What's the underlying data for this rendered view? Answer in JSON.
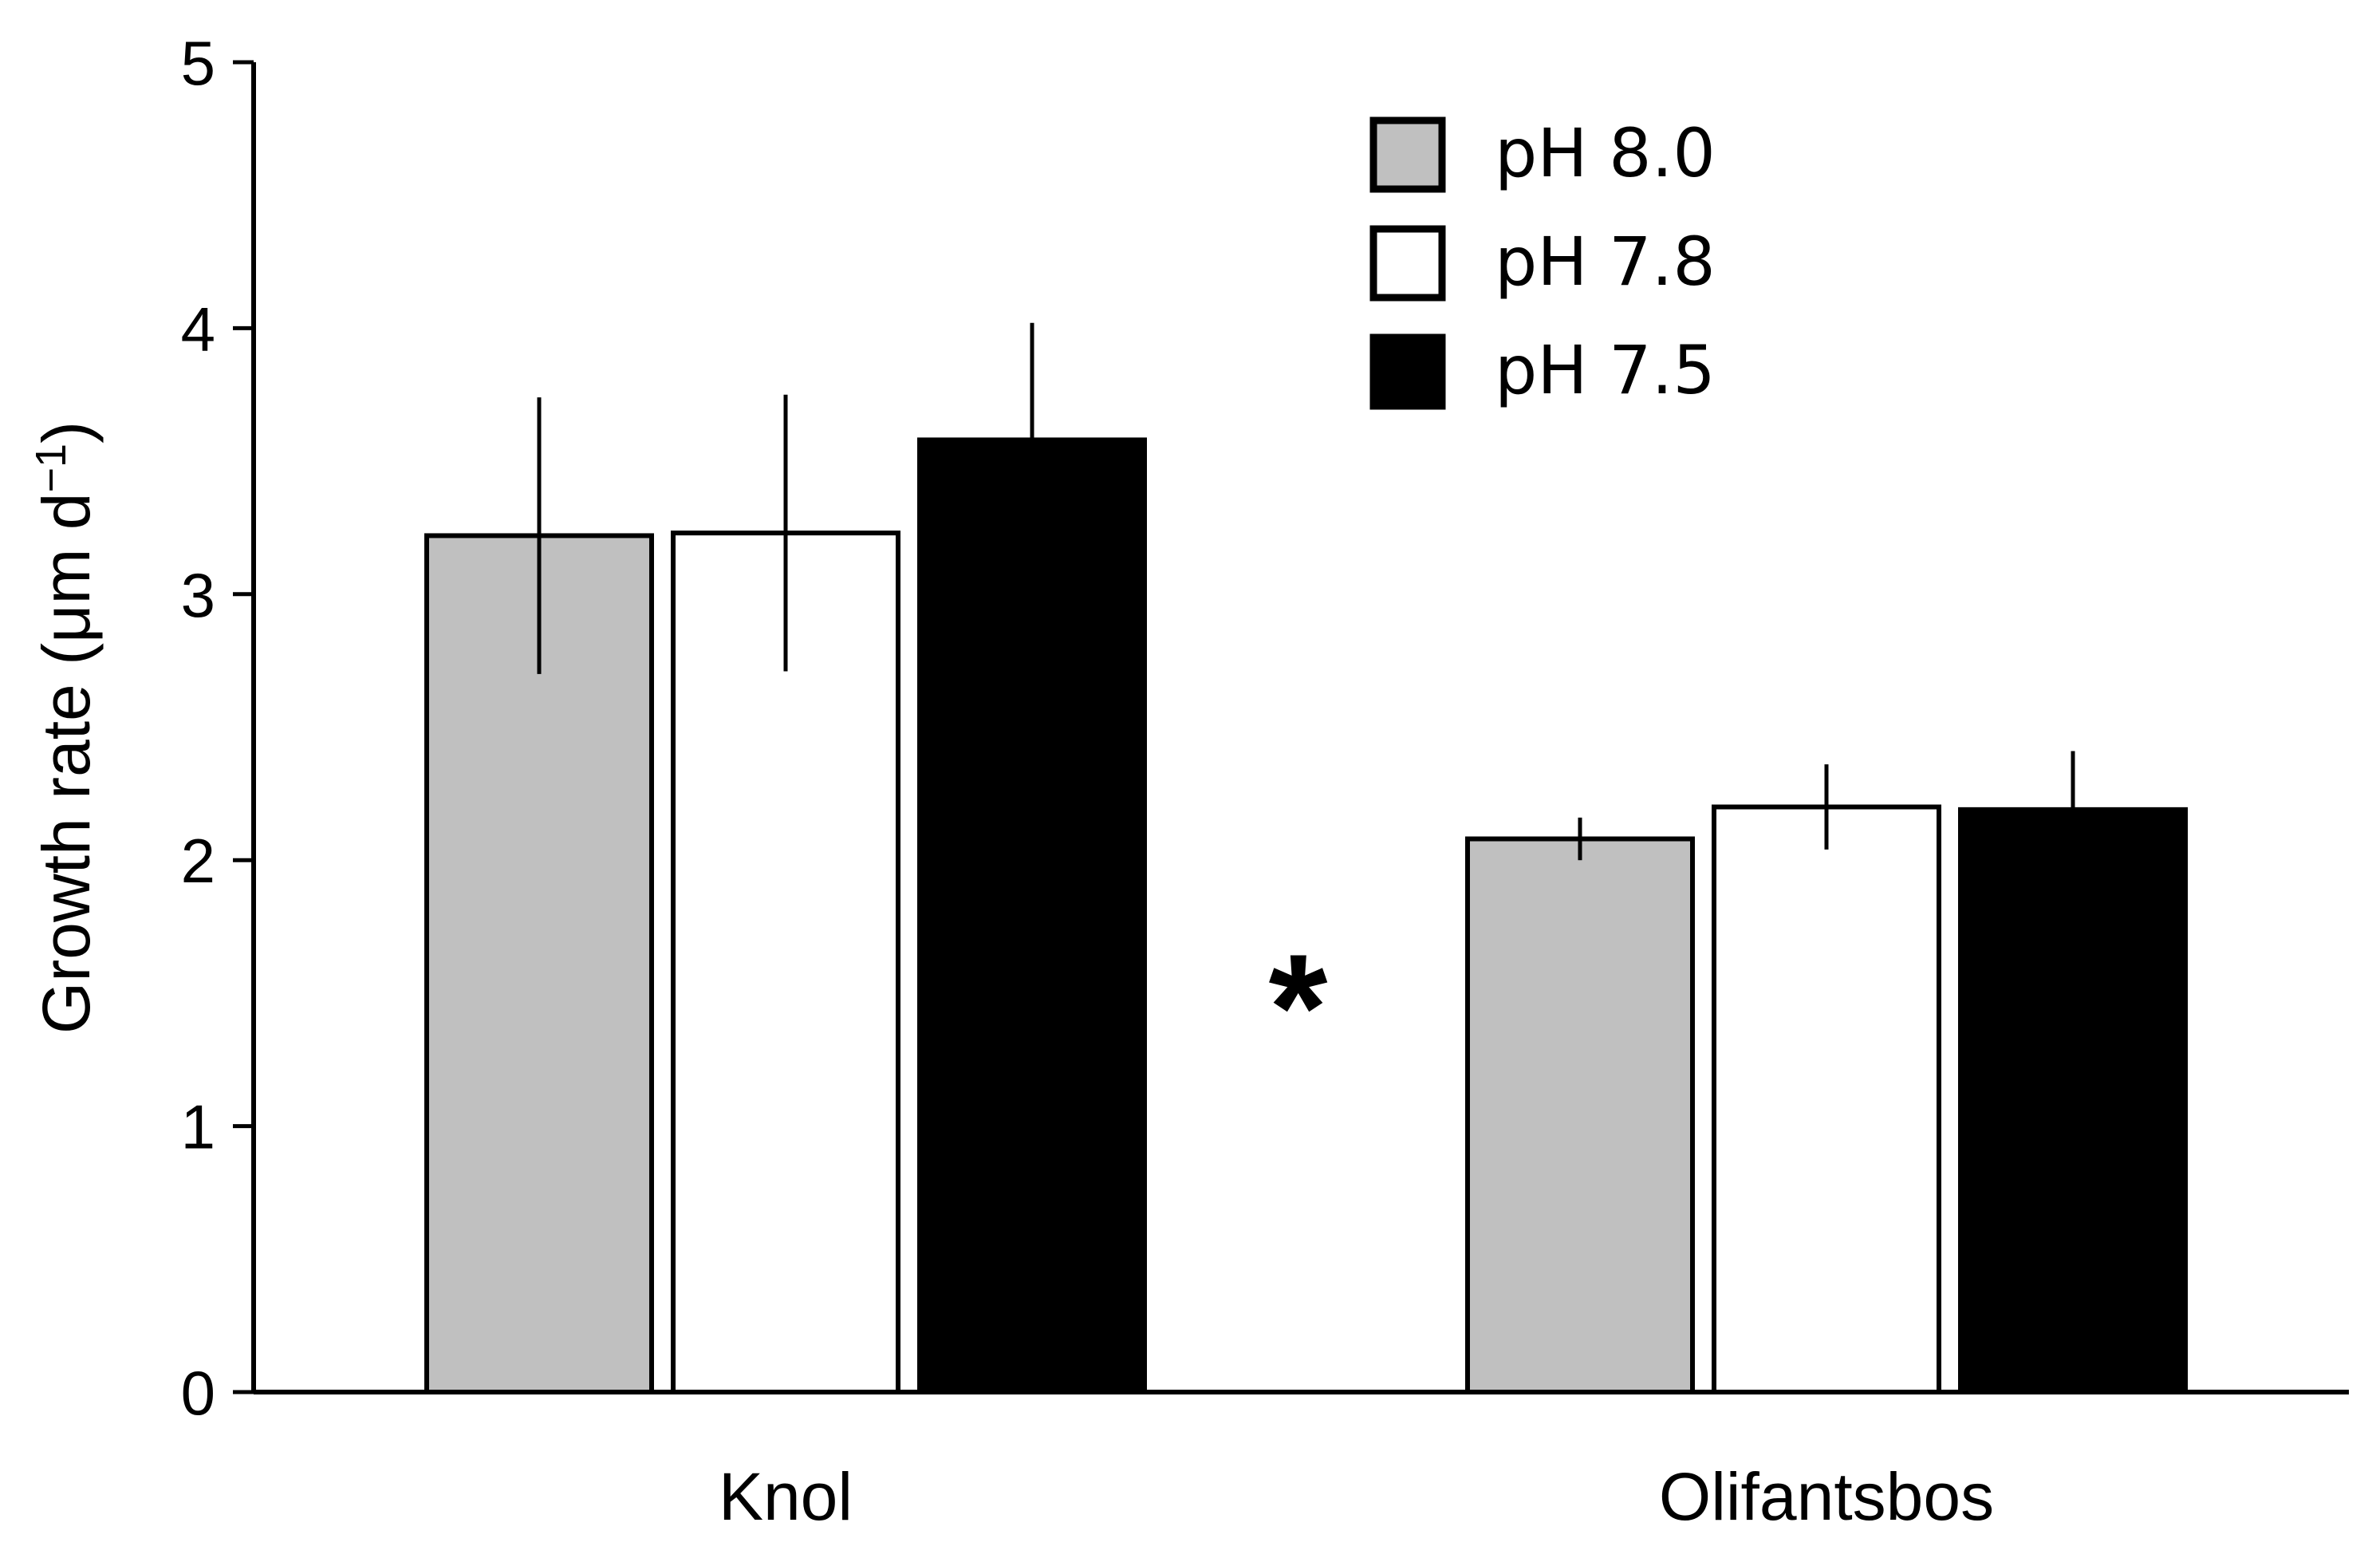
{
  "chart_data": {
    "type": "bar",
    "title": "",
    "xlabel": "",
    "ylabel": "Growth rate (μm d",
    "ylabel_superscript": "−1",
    "ylabel_close": ")",
    "ylim": [
      0,
      5
    ],
    "yticks": [
      0,
      1,
      2,
      3,
      4,
      5
    ],
    "ytick_labels": [
      "0",
      "1",
      "2",
      "3",
      "4",
      "5"
    ],
    "grid": false,
    "legend_position": "top-right",
    "categories": [
      "Knol",
      "Olifantsbos"
    ],
    "series": [
      {
        "name": "pH 8.0",
        "color": "#c0c0c0",
        "values": [
          3.22,
          2.08
        ],
        "errors": [
          0.52,
          0.08
        ]
      },
      {
        "name": "pH 7.8",
        "color": "#ffffff",
        "values": [
          3.23,
          2.2
        ],
        "errors": [
          0.52,
          0.16
        ]
      },
      {
        "name": "pH 7.5",
        "color": "#000000",
        "values": [
          3.58,
          2.19
        ],
        "errors": [
          0.44,
          0.22
        ]
      }
    ],
    "annotations": [
      {
        "text": "*",
        "between": [
          "Knol",
          "Olifantsbos"
        ],
        "y": 1.52
      }
    ]
  }
}
